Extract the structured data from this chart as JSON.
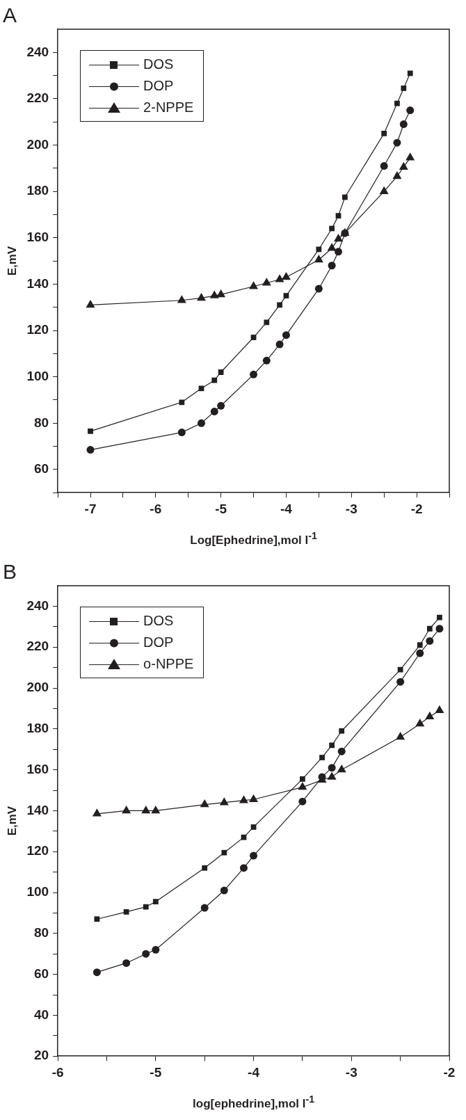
{
  "chart_data": [
    {
      "type": "line",
      "title": "A",
      "xlabel": "Log[Ephedrine],mol l$^{-1}$",
      "ylabel": "E,mV",
      "x": [
        -7,
        -5.6,
        -5.3,
        -5.1,
        -5,
        -4.5,
        -4.3,
        -4.1,
        -4,
        -3.5,
        -3.3,
        -3.2,
        -3.1,
        -2.5,
        -2.3,
        -2.2,
        -2.1
      ],
      "series": [
        {
          "name": "DOS",
          "color": "#231f20",
          "marker": "square",
          "values": [
            76.5,
            89,
            95,
            98.5,
            102,
            117,
            123.5,
            131,
            135,
            155,
            164,
            169.5,
            177.5,
            205,
            218,
            224.5,
            231
          ]
        },
        {
          "name": "DOP",
          "color": "#231f20",
          "marker": "circle",
          "values": [
            68.5,
            76,
            80,
            85,
            87.5,
            101,
            107,
            114,
            118,
            138,
            148,
            154,
            162,
            191,
            201,
            209,
            215
          ]
        },
        {
          "name": "2-NPPE",
          "color": "#231f20",
          "marker": "triangle",
          "values": [
            131,
            133,
            134,
            135,
            135.5,
            139,
            140.5,
            142,
            143,
            150.5,
            155.5,
            159.5,
            162,
            180,
            186.5,
            190.5,
            194.5
          ]
        }
      ],
      "xlim": [
        -7.5,
        -1.5
      ],
      "xticks": [
        {
          "value": -7.5,
          "label": null
        },
        -7,
        {
          "value": -6.5,
          "label": null
        },
        -6,
        {
          "value": -5.5,
          "label": null
        },
        -5,
        {
          "value": -4.5,
          "label": null
        },
        -4,
        {
          "value": -3.5,
          "label": null
        },
        -3,
        {
          "value": -2.5,
          "label": null
        },
        -2,
        {
          "value": -1.5,
          "label": null
        }
      ],
      "ylim": [
        50,
        250
      ],
      "yticks": [
        {
          "value": 50,
          "label": null
        },
        60,
        {
          "value": 70,
          "label": null
        },
        80,
        {
          "value": 90,
          "label": null
        },
        100,
        {
          "value": 110,
          "label": null
        },
        120,
        {
          "value": 130,
          "label": null
        },
        140,
        {
          "value": 150,
          "label": null
        },
        160,
        {
          "value": 170,
          "label": null
        },
        180,
        {
          "value": 190,
          "label": null
        },
        200,
        {
          "value": 210,
          "label": null
        },
        220,
        {
          "value": 230,
          "label": null
        },
        240
      ],
      "grid": false,
      "legend": "top left",
      "line_style": "solid"
    },
    {
      "type": "line",
      "title": "B",
      "xlabel": "log[ephedrine],mol l$^{-1}$",
      "ylabel": "E,mV",
      "x": [
        -5.6,
        -5.3,
        -5.1,
        -5,
        -4.5,
        -4.3,
        -4.1,
        -4,
        -3.5,
        -3.3,
        -3.2,
        -3.1,
        -2.5,
        -2.3,
        -2.2,
        -2.1
      ],
      "series": [
        {
          "name": "DOS",
          "color": "#231f20",
          "marker": "square",
          "values": [
            87,
            90.5,
            93,
            95.5,
            112,
            119.5,
            127,
            132,
            155.5,
            166,
            172,
            179,
            209,
            221,
            229,
            234.5
          ]
        },
        {
          "name": "DOP",
          "color": "#231f20",
          "marker": "circle",
          "values": [
            61,
            65.5,
            70,
            72,
            92.5,
            101,
            112,
            118,
            144.5,
            156.5,
            161,
            169,
            203,
            217,
            223,
            229
          ]
        },
        {
          "name": "o-NPPE",
          "color": "#231f20",
          "marker": "triangle",
          "values": [
            138.5,
            140,
            140,
            140,
            143,
            144,
            145,
            145.5,
            151.5,
            155,
            156.5,
            160,
            176,
            182.5,
            186,
            189
          ]
        }
      ],
      "xlim": [
        -6,
        -2
      ],
      "xticks": [
        -6,
        {
          "value": -5.5,
          "label": null
        },
        -5,
        {
          "value": -4.5,
          "label": null
        },
        -4,
        {
          "value": -3.5,
          "label": null
        },
        -3,
        {
          "value": -2.5,
          "label": null
        },
        -2
      ],
      "ylim": [
        20,
        250
      ],
      "yticks": [
        20,
        {
          "value": 30,
          "label": null
        },
        40,
        {
          "value": 50,
          "label": null
        },
        60,
        {
          "value": 70,
          "label": null
        },
        80,
        {
          "value": 90,
          "label": null
        },
        100,
        {
          "value": 110,
          "label": null
        },
        120,
        {
          "value": 130,
          "label": null
        },
        140,
        {
          "value": 150,
          "label": null
        },
        160,
        {
          "value": 170,
          "label": null
        },
        180,
        {
          "value": 190,
          "label": null
        },
        200,
        {
          "value": 210,
          "label": null
        },
        220,
        {
          "value": 230,
          "label": null
        },
        240
      ],
      "grid": false,
      "legend": "top left",
      "line_style": "solid"
    }
  ]
}
